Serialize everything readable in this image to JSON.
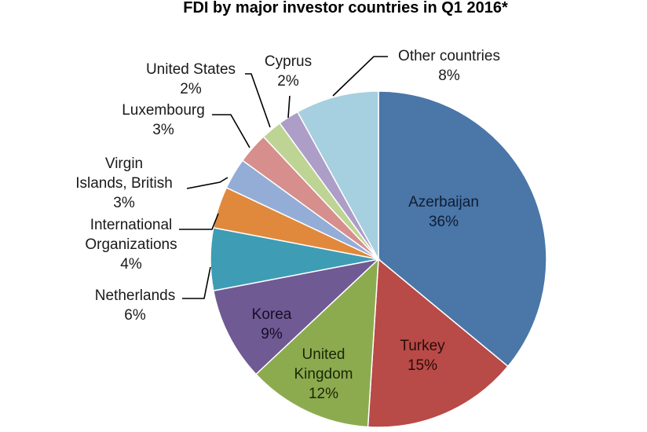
{
  "chart_data": {
    "type": "pie",
    "title": "FDI by major investor countries in Q1 2016*",
    "slices": [
      {
        "name": "Azerbaijan",
        "value": 36,
        "label": "36%",
        "color": "#4a76a8"
      },
      {
        "name": "Turkey",
        "value": 15,
        "label": "15%",
        "color": "#b84a47"
      },
      {
        "name": "United Kingdom",
        "value": 12,
        "label": "12%",
        "color": "#8cab4f"
      },
      {
        "name": "Korea",
        "value": 9,
        "label": "9%",
        "color": "#6f5a93"
      },
      {
        "name": "Netherlands",
        "value": 6,
        "label": "6%",
        "color": "#3f9cb5"
      },
      {
        "name": "International Organizations",
        "value": 4,
        "label": "4%",
        "color": "#e0893c"
      },
      {
        "name": "Virgin Islands, British",
        "value": 3,
        "label": "3%",
        "color": "#94add6"
      },
      {
        "name": "Luxembourg",
        "value": 3,
        "label": "3%",
        "color": "#d68f8c"
      },
      {
        "name": "United States",
        "value": 2,
        "label": "2%",
        "color": "#bed495"
      },
      {
        "name": "Cyprus",
        "value": 2,
        "label": "2%",
        "color": "#ad9ec8"
      },
      {
        "name": "Other countries",
        "value": 8,
        "label": "8%",
        "color": "#a6cfdf"
      }
    ]
  }
}
